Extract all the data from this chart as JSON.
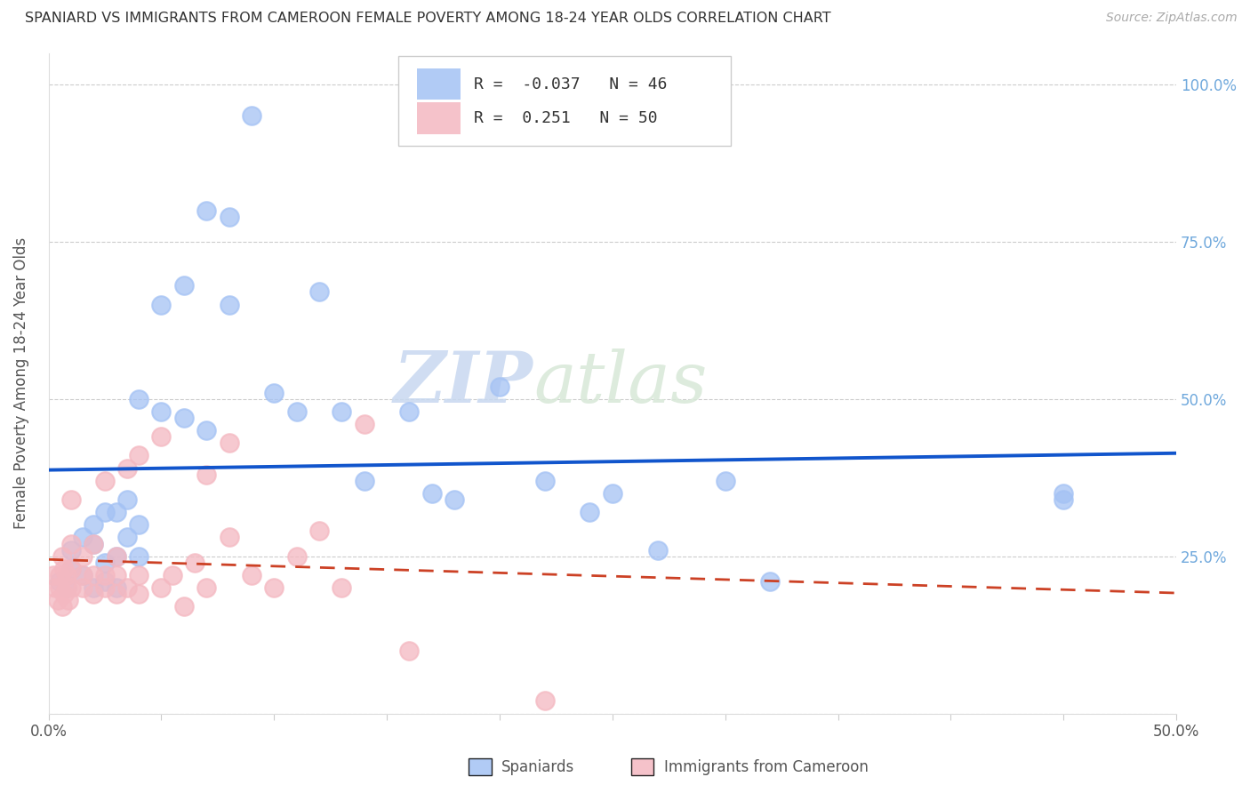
{
  "title": "SPANIARD VS IMMIGRANTS FROM CAMEROON FEMALE POVERTY AMONG 18-24 YEAR OLDS CORRELATION CHART",
  "source": "Source: ZipAtlas.com",
  "ylabel": "Female Poverty Among 18-24 Year Olds",
  "xlim": [
    0.0,
    0.5
  ],
  "ylim": [
    0.0,
    1.05
  ],
  "xticks": [
    0.0,
    0.05,
    0.1,
    0.15,
    0.2,
    0.25,
    0.3,
    0.35,
    0.4,
    0.45,
    0.5
  ],
  "xticklabels": [
    "0.0%",
    "",
    "",
    "",
    "",
    "",
    "",
    "",
    "",
    "",
    "50.0%"
  ],
  "yticks": [
    0.0,
    0.25,
    0.5,
    0.75,
    1.0
  ],
  "right_yticklabels": [
    "",
    "25.0%",
    "50.0%",
    "75.0%",
    "100.0%"
  ],
  "blue_color": "#a4c2f4",
  "pink_color": "#f4b8c1",
  "blue_line_color": "#1155cc",
  "pink_line_color": "#cc4125",
  "legend_blue_label": "Spaniards",
  "legend_pink_label": "Immigrants from Cameroon",
  "R_blue": -0.037,
  "N_blue": 46,
  "R_pink": 0.251,
  "N_pink": 50,
  "watermark_zip": "ZIP",
  "watermark_atlas": "atlas",
  "blue_scatter_x": [
    0.005,
    0.008,
    0.01,
    0.01,
    0.015,
    0.015,
    0.02,
    0.02,
    0.02,
    0.025,
    0.025,
    0.025,
    0.03,
    0.03,
    0.03,
    0.035,
    0.035,
    0.04,
    0.04,
    0.04,
    0.05,
    0.05,
    0.06,
    0.06,
    0.07,
    0.07,
    0.08,
    0.08,
    0.09,
    0.1,
    0.11,
    0.12,
    0.13,
    0.14,
    0.16,
    0.17,
    0.18,
    0.2,
    0.22,
    0.24,
    0.25,
    0.27,
    0.3,
    0.32,
    0.45,
    0.45
  ],
  "blue_scatter_y": [
    0.21,
    0.2,
    0.23,
    0.26,
    0.22,
    0.28,
    0.2,
    0.27,
    0.3,
    0.21,
    0.24,
    0.32,
    0.2,
    0.25,
    0.32,
    0.28,
    0.34,
    0.25,
    0.3,
    0.5,
    0.48,
    0.65,
    0.47,
    0.68,
    0.45,
    0.8,
    0.65,
    0.79,
    0.95,
    0.51,
    0.48,
    0.67,
    0.48,
    0.37,
    0.48,
    0.35,
    0.34,
    0.52,
    0.37,
    0.32,
    0.35,
    0.26,
    0.37,
    0.21,
    0.35,
    0.34
  ],
  "pink_scatter_x": [
    0.002,
    0.003,
    0.004,
    0.005,
    0.005,
    0.006,
    0.006,
    0.007,
    0.007,
    0.008,
    0.008,
    0.009,
    0.01,
    0.01,
    0.01,
    0.01,
    0.015,
    0.015,
    0.015,
    0.02,
    0.02,
    0.02,
    0.025,
    0.025,
    0.025,
    0.03,
    0.03,
    0.03,
    0.035,
    0.035,
    0.04,
    0.04,
    0.04,
    0.05,
    0.05,
    0.055,
    0.06,
    0.065,
    0.07,
    0.07,
    0.08,
    0.08,
    0.09,
    0.1,
    0.11,
    0.12,
    0.13,
    0.14,
    0.16,
    0.22
  ],
  "pink_scatter_y": [
    0.22,
    0.2,
    0.18,
    0.2,
    0.22,
    0.17,
    0.25,
    0.19,
    0.23,
    0.2,
    0.22,
    0.18,
    0.2,
    0.23,
    0.27,
    0.34,
    0.2,
    0.22,
    0.25,
    0.19,
    0.22,
    0.27,
    0.2,
    0.22,
    0.37,
    0.19,
    0.22,
    0.25,
    0.2,
    0.39,
    0.19,
    0.22,
    0.41,
    0.2,
    0.44,
    0.22,
    0.17,
    0.24,
    0.2,
    0.38,
    0.28,
    0.43,
    0.22,
    0.2,
    0.25,
    0.29,
    0.2,
    0.46,
    0.1,
    0.02
  ],
  "figsize": [
    14.06,
    8.92
  ],
  "dpi": 100
}
